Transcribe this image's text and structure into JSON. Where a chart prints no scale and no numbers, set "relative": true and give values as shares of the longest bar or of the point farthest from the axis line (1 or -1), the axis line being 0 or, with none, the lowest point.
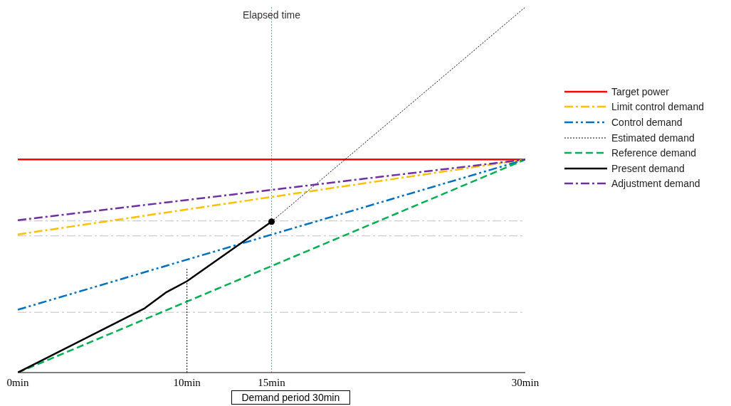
{
  "chart_data": {
    "type": "line",
    "relative": true,
    "xlim": [
      0,
      30
    ],
    "xticks": [
      {
        "value": 0,
        "label": "0min"
      },
      {
        "value": 10,
        "label": "10min"
      },
      {
        "value": 15,
        "label": "15min"
      },
      {
        "value": 30,
        "label": "30min"
      }
    ],
    "series": [
      {
        "name": "Target power",
        "color": "#ff0000",
        "line_style": "solid",
        "x": [
          0,
          30
        ],
        "values": [
          0.583,
          0.583
        ]
      },
      {
        "name": "Limit control demand",
        "color": "#ffc000",
        "line_style": "dashdot",
        "x": [
          0,
          30
        ],
        "values": [
          0.378,
          0.583
        ]
      },
      {
        "name": "Control demand",
        "color": "#0070c0",
        "line_style": "dashdotdot",
        "x": [
          0,
          30
        ],
        "values": [
          0.172,
          0.583
        ]
      },
      {
        "name": "Estimated demand",
        "color": "#000000",
        "line_style": "dotted",
        "x": [
          15,
          30
        ],
        "values": [
          0.413,
          1
        ]
      },
      {
        "name": "Reference demand",
        "color": "#00b050",
        "line_style": "dashed",
        "x": [
          0,
          30
        ],
        "values": [
          0,
          0.583
        ]
      },
      {
        "name": "Present demand",
        "color": "#000000",
        "line_style": "solid",
        "x": [
          0,
          7.5,
          8.75,
          10,
          15
        ],
        "values": [
          0,
          0.176,
          0.219,
          0.25,
          0.413
        ]
      },
      {
        "name": "Adjustment demand",
        "color": "#7030a0",
        "line_style": "dashdot",
        "x": [
          0,
          30
        ],
        "values": [
          0.417,
          0.583
        ]
      },
      {
        "type": "line",
        "color": "#000000",
        "line_style": "dotted",
        "x": [
          10,
          10
        ],
        "values": [
          0,
          0.287
        ]
      },
      {
        "type": "scatter",
        "color": "#000000",
        "marker": "circle",
        "x": [
          15
        ],
        "values": [
          0.413
        ]
      }
    ],
    "ref_lines": [
      {
        "axis": "x",
        "value": 15,
        "label": "Elapsed time",
        "color": "#c08080",
        "line_style": "dotted"
      },
      {
        "axis": "y",
        "value": 0.415,
        "color": "#bfbfbf",
        "line_style": "dashdot"
      },
      {
        "axis": "y",
        "value": 0.374,
        "color": "#bfbfbf",
        "line_style": "dashdot"
      },
      {
        "axis": "y",
        "value": 0.165,
        "color": "#bfbfbf",
        "line_style": "dashdot"
      }
    ],
    "legend": "right",
    "annotations": [
      "Demand period 30min"
    ]
  }
}
